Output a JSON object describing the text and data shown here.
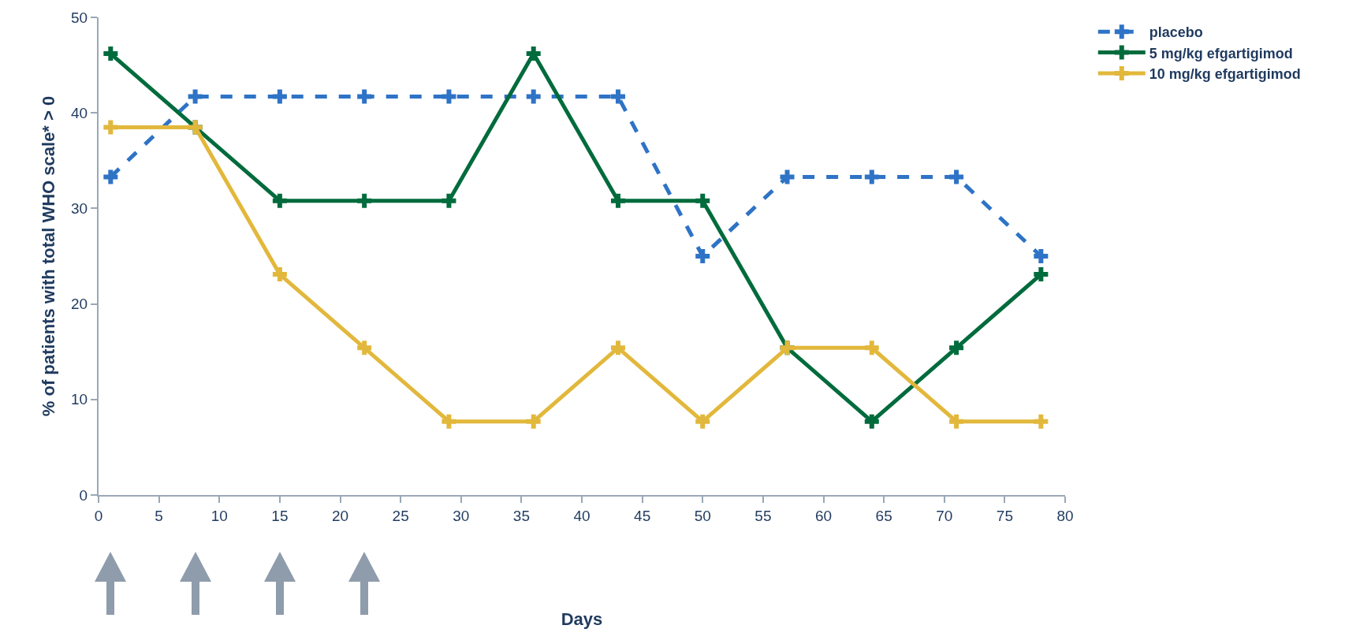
{
  "chart_data": {
    "type": "line",
    "xlabel": "Days",
    "ylabel": "% of patients with total WHO scale* > 0",
    "x": [
      1,
      8,
      15,
      22,
      29,
      36,
      43,
      50,
      57,
      64,
      71,
      78
    ],
    "series": [
      {
        "name": "placebo",
        "color": "#2e73c6",
        "line_style": "dashed",
        "values": [
          33.3,
          41.7,
          41.7,
          41.7,
          41.7,
          41.7,
          41.7,
          25,
          33.3,
          33.3,
          33.3,
          25
        ]
      },
      {
        "name": "5 mg/kg efgartigimod",
        "color": "#006b3c",
        "line_style": "solid",
        "values": [
          46.2,
          38.5,
          30.8,
          30.8,
          30.8,
          46.2,
          30.8,
          30.8,
          15.4,
          7.7,
          15.4,
          23.1
        ]
      },
      {
        "name": "10 mg/kg efgartigimod",
        "color": "#e2b83c",
        "line_style": "solid",
        "values": [
          38.5,
          38.5,
          23.1,
          15.4,
          7.7,
          7.7,
          15.4,
          7.7,
          15.4,
          15.4,
          7.7,
          7.7
        ]
      }
    ],
    "xlim": [
      0,
      80
    ],
    "xticks": [
      0,
      5,
      10,
      15,
      20,
      25,
      30,
      35,
      40,
      45,
      50,
      55,
      60,
      65,
      70,
      75,
      80
    ],
    "ylim": [
      0,
      50
    ],
    "yticks": [
      0,
      10,
      20,
      30,
      40,
      50
    ],
    "grid": false,
    "legend": "top right",
    "marker": "cross"
  }
}
